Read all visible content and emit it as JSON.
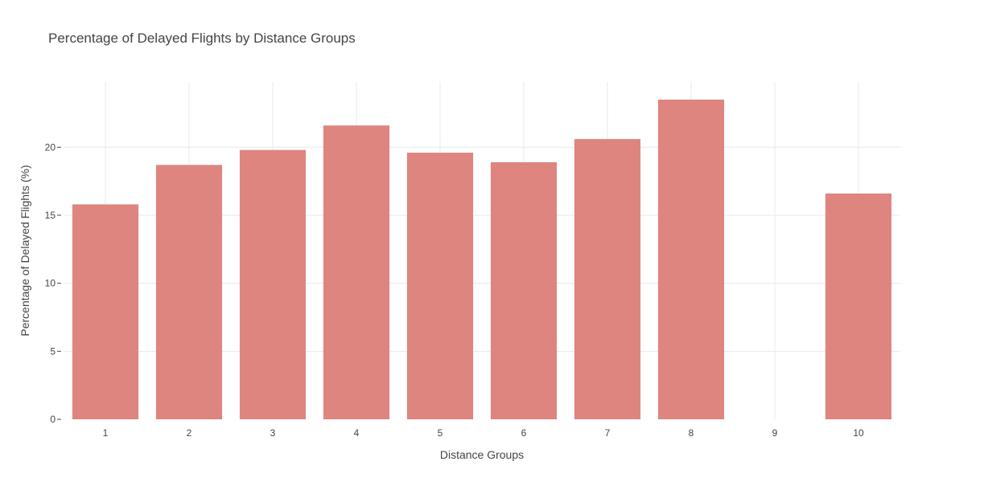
{
  "chart_data": {
    "type": "bar",
    "title": "Percentage of Delayed Flights by Distance Groups",
    "xlabel": "Distance Groups",
    "ylabel": "Percentage of Delayed Flights (%)",
    "categories": [
      "1",
      "2",
      "3",
      "4",
      "5",
      "6",
      "7",
      "8",
      "9",
      "10"
    ],
    "values": [
      15.8,
      18.7,
      19.8,
      21.6,
      19.6,
      18.9,
      20.6,
      23.5,
      null,
      16.6
    ],
    "yticks": [
      "0",
      "5",
      "10",
      "15",
      "20"
    ],
    "ylim": [
      0,
      24.8
    ],
    "grid": true,
    "bar_color": "#de8580",
    "grid_color": "#e8e8e8",
    "text_color": "#444444"
  }
}
